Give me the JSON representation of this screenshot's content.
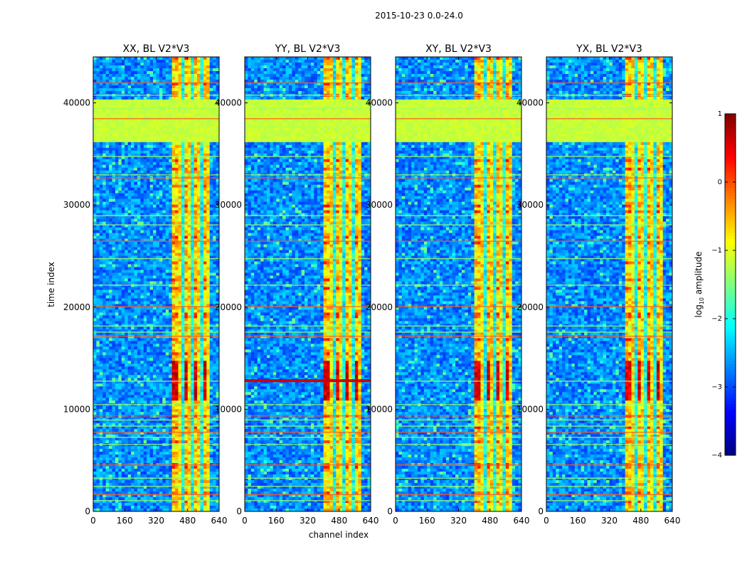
{
  "chart_data": {
    "type": "heatmap",
    "suptitle": "2015-10-23 0.0-24.0",
    "xlabel": "channel index",
    "ylabel": "time index",
    "xlim": [
      0,
      640
    ],
    "ylim": [
      0,
      44500
    ],
    "xticks": [
      0,
      160,
      320,
      480,
      640
    ],
    "yticks": [
      0,
      10000,
      20000,
      30000,
      40000
    ],
    "panels": [
      {
        "title": "XX, BL V2*V3"
      },
      {
        "title": "YY, BL V2*V3"
      },
      {
        "title": "XY, BL V2*V3"
      },
      {
        "title": "YX, BL V2*V3"
      }
    ],
    "high_band_channels": [
      400,
      595
    ],
    "hot_block_time": [
      10800,
      14800
    ],
    "saturated_block_time": [
      36200,
      40400
    ],
    "colorbar": {
      "label": "log$_{10}$ amplitude",
      "label_main": "log",
      "label_sub": "10",
      "label_rest": " amplitude",
      "min": -4,
      "max": 1,
      "ticks": [
        1,
        0,
        -1,
        -2,
        -3,
        -4
      ],
      "colormap": "jet"
    }
  }
}
